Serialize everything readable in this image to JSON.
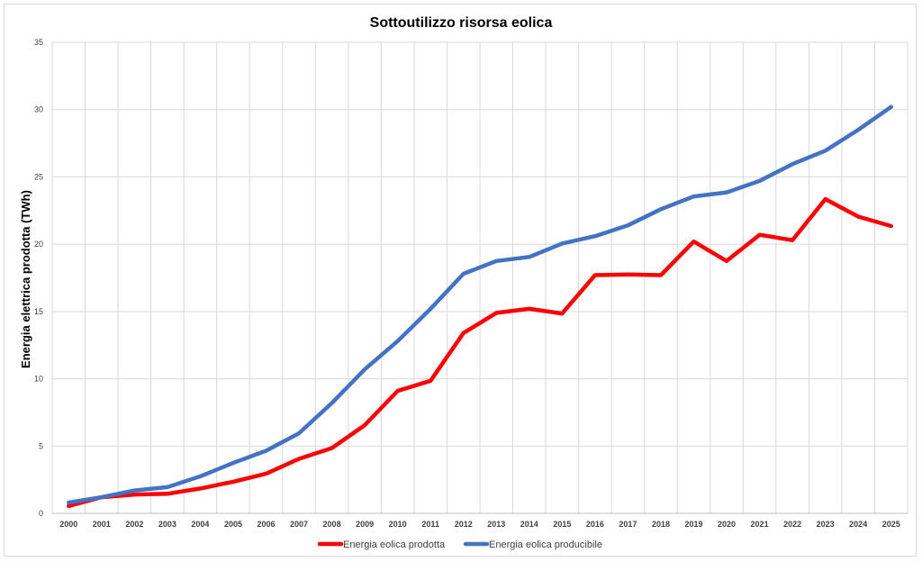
{
  "chart_data": {
    "type": "line",
    "title": "Sottoutilizzo risorsa eolica",
    "xlabel": "",
    "ylabel": "Energia elettrica prodotta (TWh)",
    "ylim": [
      0,
      35
    ],
    "yticks": [
      "0",
      "5",
      "10",
      "15",
      "20",
      "25",
      "30",
      "35"
    ],
    "grid": true,
    "legend_position": "bottom",
    "categories": [
      "2000",
      "2001",
      "2002",
      "2003",
      "2004",
      "2005",
      "2006",
      "2007",
      "2008",
      "2009",
      "2010",
      "2011",
      "2012",
      "2013",
      "2014",
      "2015",
      "2016",
      "2017",
      "2018",
      "2019",
      "2020",
      "2021",
      "2022",
      "2023",
      "2024",
      "2025"
    ],
    "series": [
      {
        "name": "Energia eolica prodotta",
        "color": "#ff0000",
        "values": [
          0.55,
          1.2,
          1.4,
          1.45,
          1.85,
          2.35,
          2.95,
          4.05,
          4.85,
          6.55,
          9.1,
          9.85,
          13.4,
          14.9,
          15.2,
          14.85,
          17.7,
          17.75,
          17.7,
          20.2,
          18.75,
          20.7,
          20.3,
          23.35,
          22.05,
          21.35
        ]
      },
      {
        "name": "Energia eolica producibile",
        "color": "#4472c4",
        "values": [
          0.8,
          1.2,
          1.7,
          1.95,
          2.75,
          3.75,
          4.65,
          5.95,
          8.2,
          10.7,
          12.8,
          15.2,
          17.8,
          18.75,
          19.05,
          20.05,
          20.6,
          21.4,
          22.6,
          23.55,
          23.85,
          24.7,
          25.95,
          26.95,
          28.5,
          30.2
        ]
      }
    ]
  }
}
